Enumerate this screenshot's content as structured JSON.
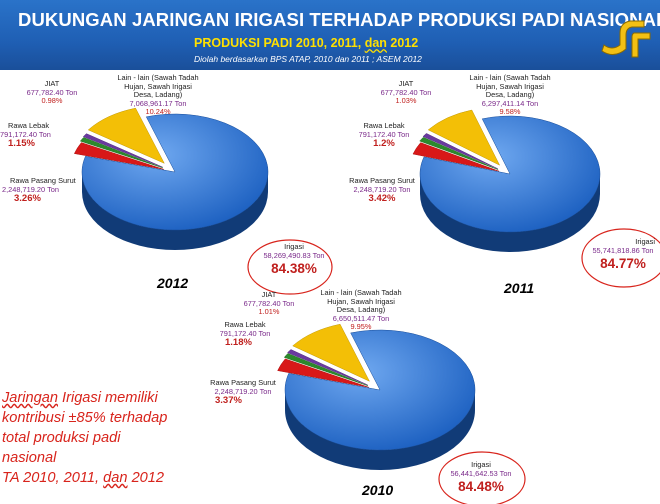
{
  "header": {
    "title": "DUKUNGAN  JARINGAN IRIGASI TERHADAP PRODUKSI PADI NASIONAL",
    "subtitle_a": "PRODUKSI PADI 2010,  2011,  ",
    "subtitle_b": "dan",
    "subtitle_c": " 2012",
    "source": "Diolah berdasarkan BPS ATAP,  2010 dan 2011 ; ASEM 2012"
  },
  "colors": {
    "irigasi": "#1b5fc0",
    "pasang_surut": "#d81818",
    "rawa_lebak": "#2c8a2c",
    "jiat": "#6a3aa0",
    "lain_lain": "#f3bf06",
    "accent_red": "#d8241c",
    "header_blue": "#1f5fb4",
    "header_yellow": "#ffe000"
  },
  "note": {
    "line1a": "Jaringan",
    "line1b": " Irigasi memiliki",
    "line2": "kontribusi ±85% terhadap",
    "line3": "total produksi padi",
    "line4": "nasional",
    "line5a": "TA 2010, 2011, ",
    "line5b": "dan",
    "line5c": " 2012"
  },
  "chart_data": [
    {
      "type": "pie",
      "title": "2012",
      "unit": "Ton",
      "slices": [
        {
          "name": "Irigasi",
          "value": 58269490.83,
          "value_label": "58,269,490.83 Ton",
          "percent": 84.38,
          "percent_label": "84.38%"
        },
        {
          "name": "Rawa Pasang Surut",
          "value": 2248719.2,
          "value_label": "2,248,719.20 Ton",
          "percent": 3.26,
          "percent_label": "3.26%"
        },
        {
          "name": "Rawa Lebak",
          "value": 791172.4,
          "value_label": "791,172.40 Ton",
          "percent": 1.15,
          "percent_label": "1.15%"
        },
        {
          "name": "JIAT",
          "value": 677782.4,
          "value_label": "677,782.40 Ton",
          "percent": 0.98,
          "percent_label": "0.98%"
        },
        {
          "name_lines": [
            "Lain - lain (Sawah Tadah",
            "Hujan, Sawah Irigasi",
            "Desa, Ladang)"
          ],
          "value": 7068961.17,
          "value_label": "7,068,961.17 Ton",
          "percent": 10.24,
          "percent_label": "10.24%"
        }
      ]
    },
    {
      "type": "pie",
      "title": "2011",
      "unit": "Ton",
      "slices": [
        {
          "name": "Irigasi",
          "value": 55741818.86,
          "value_label": "55,741,818.86 Ton",
          "percent": 84.77,
          "percent_label": "84.77%"
        },
        {
          "name": "Rawa Pasang Surut",
          "value": 2248719.2,
          "value_label": "2,248,719.20 Ton",
          "percent": 3.42,
          "percent_label": "3.42%"
        },
        {
          "name": "Rawa Lebak",
          "value": 791172.4,
          "value_label": "791,172.40 Ton",
          "percent": 1.2,
          "percent_label": "1.2%"
        },
        {
          "name": "JIAT",
          "value": 677782.4,
          "value_label": "677,782.40 Ton",
          "percent": 1.03,
          "percent_label": "1.03%"
        },
        {
          "name_lines": [
            "Lain - lain (Sawah Tadah",
            "Hujan, Sawah Irigasi",
            "Desa, Ladang)"
          ],
          "value": 6297411.14,
          "value_label": "6,297,411.14 Ton",
          "percent": 9.58,
          "percent_label": "9.58%"
        }
      ]
    },
    {
      "type": "pie",
      "title": "2010",
      "unit": "Ton",
      "slices": [
        {
          "name": "Irigasi",
          "value": 56441642.53,
          "value_label": "56,441,642.53 Ton",
          "percent": 84.48,
          "percent_label": "84.48%"
        },
        {
          "name": "Rawa Pasang Surut",
          "value": 2248719.2,
          "value_label": "2,248,719.20 Ton",
          "percent": 3.37,
          "percent_label": "3.37%"
        },
        {
          "name": "Rawa Lebak",
          "value": 791172.4,
          "value_label": "791,172.40 Ton",
          "percent": 1.18,
          "percent_label": "1.18%"
        },
        {
          "name": "JIAT",
          "value": 677782.4,
          "value_label": "677,782.40 Ton",
          "percent": 1.01,
          "percent_label": "1.01%"
        },
        {
          "name_lines": [
            "Lain - lain (Sawah Tadah",
            "Hujan, Sawah Irigasi",
            "Desa, Ladang)"
          ],
          "value": 6650511.47,
          "value_label": "6,650,511.47 Ton",
          "percent": 9.95,
          "percent_label": "9.95%"
        }
      ]
    }
  ]
}
